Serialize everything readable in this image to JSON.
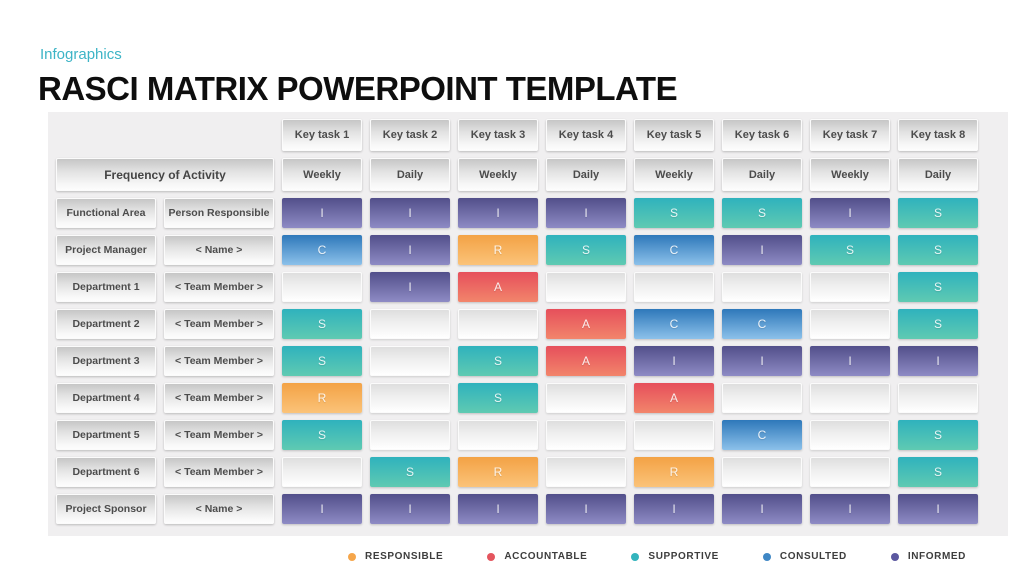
{
  "header": {
    "eyebrow": "Infographics",
    "title": "RASCI MATRIX POWERPOINT TEMPLATE"
  },
  "matrix": {
    "task_headers": [
      "Key task 1",
      "Key task 2",
      "Key task 3",
      "Key task 4",
      "Key task 5",
      "Key task 6",
      "Key task 7",
      "Key task 8"
    ],
    "frequency_label": "Frequency of Activity",
    "frequencies": [
      "Weekly",
      "Daily",
      "Weekly",
      "Daily",
      "Weekly",
      "Daily",
      "Weekly",
      "Daily"
    ],
    "rows": [
      {
        "area": "Functional Area",
        "person": "Person Responsible",
        "cells": [
          "I",
          "I",
          "I",
          "I",
          "S",
          "S",
          "I",
          "S"
        ]
      },
      {
        "area": "Project Manager",
        "person": "< Name >",
        "cells": [
          "C",
          "I",
          "R",
          "S",
          "C",
          "I",
          "S",
          "S"
        ]
      },
      {
        "area": "Department 1",
        "person": "< Team Member >",
        "cells": [
          "",
          "I",
          "A",
          "",
          "",
          "",
          "",
          "S"
        ]
      },
      {
        "area": "Department 2",
        "person": "< Team Member >",
        "cells": [
          "S",
          "",
          "",
          "A",
          "C",
          "C",
          "",
          "S"
        ]
      },
      {
        "area": "Department 3",
        "person": "< Team Member >",
        "cells": [
          "S",
          "",
          "S",
          "A",
          "I",
          "I",
          "I",
          "I"
        ]
      },
      {
        "area": "Department 4",
        "person": "< Team Member >",
        "cells": [
          "R",
          "",
          "S",
          "",
          "A",
          "",
          "",
          ""
        ]
      },
      {
        "area": "Department 5",
        "person": "< Team Member >",
        "cells": [
          "S",
          "",
          "",
          "",
          "",
          "C",
          "",
          "S"
        ]
      },
      {
        "area": "Department 6",
        "person": "< Team Member >",
        "cells": [
          "",
          "S",
          "R",
          "",
          "R",
          "",
          "",
          "S"
        ]
      },
      {
        "area": "Project Sponsor",
        "person": "< Name >",
        "cells": [
          "I",
          "I",
          "I",
          "I",
          "I",
          "I",
          "I",
          "I"
        ]
      }
    ]
  },
  "legend": [
    {
      "key": "R",
      "label": "RESPONSIBLE",
      "name": "responsible",
      "color": "#f5a64b",
      "cell_top": "#f3a245",
      "cell_bottom": "#fbc379"
    },
    {
      "key": "A",
      "label": "ACCOUNTABLE",
      "name": "accountable",
      "color": "#e4555e",
      "cell_top": "#e64f5b",
      "cell_bottom": "#f2856b"
    },
    {
      "key": "S",
      "label": "SUPPORTIVE",
      "name": "supportive",
      "color": "#33b4bd",
      "cell_top": "#2fb2bd",
      "cell_bottom": "#5fcab2"
    },
    {
      "key": "C",
      "label": "CONSULTED",
      "name": "consulted",
      "color": "#3f87c5",
      "cell_top": "#2e78ba",
      "cell_bottom": "#8cc1ea"
    },
    {
      "key": "I",
      "label": "INFORMED",
      "name": "informed",
      "color": "#5b58a0",
      "cell_top": "#524f8a",
      "cell_bottom": "#8e8bc5"
    }
  ],
  "panel_background": "#f0eff0",
  "eyebrow_color": "#3db4c6"
}
